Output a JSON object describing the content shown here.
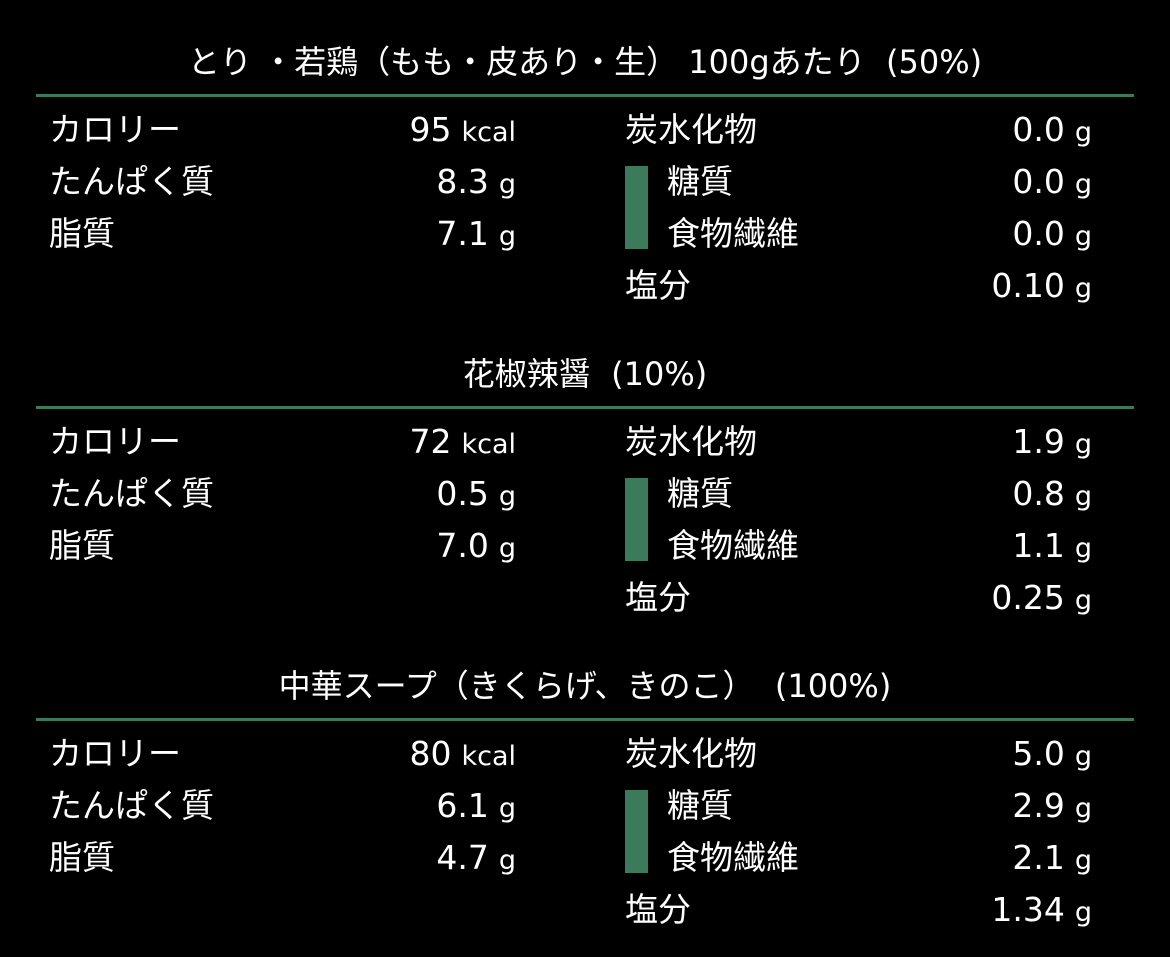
{
  "accent_color": "#3c7a5c",
  "sections": [
    {
      "title": "とり ・若鶏（もも・皮あり・生） 100gあたり  (50%)",
      "nutrients": {
        "calories": {
          "label": "カロリー",
          "value": "95",
          "unit": "kcal"
        },
        "protein": {
          "label": "たんぱく質",
          "value": "8.3",
          "unit": "g"
        },
        "fat": {
          "label": "脂質",
          "value": "7.1",
          "unit": "g"
        },
        "carbs": {
          "label": "炭水化物",
          "value": "0.0",
          "unit": "g"
        },
        "sugar": {
          "label": "糖質",
          "value": "0.0",
          "unit": "g"
        },
        "fiber": {
          "label": "食物繊維",
          "value": "0.0",
          "unit": "g"
        },
        "salt": {
          "label": "塩分",
          "value": "0.10",
          "unit": "g"
        }
      }
    },
    {
      "title": "花椒辣醤  (10%)",
      "nutrients": {
        "calories": {
          "label": "カロリー",
          "value": "72",
          "unit": "kcal"
        },
        "protein": {
          "label": "たんぱく質",
          "value": "0.5",
          "unit": "g"
        },
        "fat": {
          "label": "脂質",
          "value": "7.0",
          "unit": "g"
        },
        "carbs": {
          "label": "炭水化物",
          "value": "1.9",
          "unit": "g"
        },
        "sugar": {
          "label": "糖質",
          "value": "0.8",
          "unit": "g"
        },
        "fiber": {
          "label": "食物繊維",
          "value": "1.1",
          "unit": "g"
        },
        "salt": {
          "label": "塩分",
          "value": "0.25",
          "unit": "g"
        }
      }
    },
    {
      "title": "中華スープ（きくらげ、きのこ）  (100%)",
      "nutrients": {
        "calories": {
          "label": "カロリー",
          "value": "80",
          "unit": "kcal"
        },
        "protein": {
          "label": "たんぱく質",
          "value": "6.1",
          "unit": "g"
        },
        "fat": {
          "label": "脂質",
          "value": "4.7",
          "unit": "g"
        },
        "carbs": {
          "label": "炭水化物",
          "value": "5.0",
          "unit": "g"
        },
        "sugar": {
          "label": "糖質",
          "value": "2.9",
          "unit": "g"
        },
        "fiber": {
          "label": "食物繊維",
          "value": "2.1",
          "unit": "g"
        },
        "salt": {
          "label": "塩分",
          "value": "1.34",
          "unit": "g"
        }
      }
    }
  ]
}
